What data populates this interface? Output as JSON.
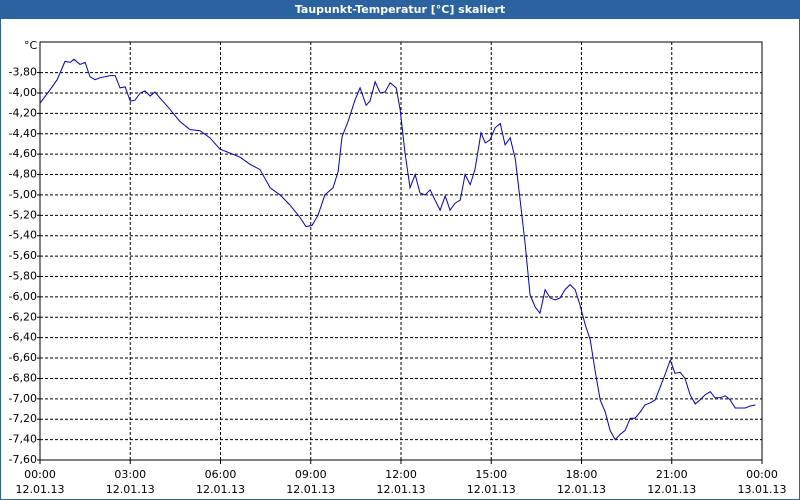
{
  "chart_data": {
    "type": "line",
    "title": "Taupunkt-Temperatur [°C] skaliert",
    "y_label": "°C",
    "color": "#0000cc",
    "grid": true,
    "xlim": [
      0,
      24
    ],
    "ylim": [
      -7.6,
      -3.5
    ],
    "xticks": [
      {
        "value": 0,
        "label": "00:00"
      },
      {
        "value": 3,
        "label": "03:00"
      },
      {
        "value": 6,
        "label": "06:00"
      },
      {
        "value": 9,
        "label": "09:00"
      },
      {
        "value": 12,
        "label": "12:00"
      },
      {
        "value": 15,
        "label": "15:00"
      },
      {
        "value": 18,
        "label": "18:00"
      },
      {
        "value": 21,
        "label": "21:00"
      },
      {
        "value": 24,
        "label": "00:00"
      }
    ],
    "xtick_dates": [
      "12.01.13",
      "12.01.13",
      "12.01.13",
      "12.01.13",
      "12.01.13",
      "12.01.13",
      "12.01.13",
      "12.01.13",
      "13.01.13"
    ],
    "yticks": [
      {
        "value": -3.8,
        "label": "-3,80"
      },
      {
        "value": -4.0,
        "label": "-4,00"
      },
      {
        "value": -4.2,
        "label": "-4,20"
      },
      {
        "value": -4.4,
        "label": "-4,40"
      },
      {
        "value": -4.6,
        "label": "-4,60"
      },
      {
        "value": -4.8,
        "label": "-4,80"
      },
      {
        "value": -5.0,
        "label": "-5,00"
      },
      {
        "value": -5.2,
        "label": "-5,20"
      },
      {
        "value": -5.4,
        "label": "-5,40"
      },
      {
        "value": -5.6,
        "label": "-5,60"
      },
      {
        "value": -5.8,
        "label": "-5,80"
      },
      {
        "value": -6.0,
        "label": "-6,00"
      },
      {
        "value": -6.2,
        "label": "-6,20"
      },
      {
        "value": -6.4,
        "label": "-6,40"
      },
      {
        "value": -6.6,
        "label": "-6,60"
      },
      {
        "value": -6.8,
        "label": "-6,80"
      },
      {
        "value": -7.0,
        "label": "-7,00"
      },
      {
        "value": -7.2,
        "label": "-7,20"
      },
      {
        "value": -7.4,
        "label": "-7,40"
      },
      {
        "value": -7.6,
        "label": "-7,60"
      }
    ],
    "x": [
      0,
      0.33,
      0.57,
      0.83,
      1.0,
      1.13,
      1.33,
      1.5,
      1.66,
      1.83,
      2.0,
      2.33,
      2.5,
      2.66,
      2.83,
      3.0,
      3.16,
      3.33,
      3.49,
      3.66,
      3.82,
      3.99,
      4.32,
      4.65,
      4.99,
      5.32,
      5.65,
      5.98,
      6.32,
      6.65,
      6.98,
      7.31,
      7.65,
      7.98,
      8.31,
      8.64,
      8.84,
      9.04,
      9.24,
      9.47,
      9.74,
      9.91,
      10.04,
      10.24,
      10.47,
      10.64,
      10.84,
      10.97,
      11.14,
      11.31,
      11.47,
      11.64,
      11.84,
      11.97,
      12.13,
      12.3,
      12.47,
      12.63,
      12.8,
      12.97,
      13.13,
      13.3,
      13.47,
      13.63,
      13.8,
      13.97,
      14.13,
      14.3,
      14.46,
      14.66,
      14.8,
      14.96,
      15.13,
      15.3,
      15.46,
      15.63,
      15.8,
      15.96,
      16.13,
      16.29,
      16.46,
      16.62,
      16.79,
      16.96,
      17.12,
      17.29,
      17.45,
      17.62,
      17.79,
      17.95,
      18.12,
      18.29,
      18.45,
      18.62,
      18.79,
      18.95,
      19.12,
      19.28,
      19.45,
      19.62,
      19.78,
      19.95,
      20.11,
      20.28,
      20.45,
      20.61,
      20.78,
      20.95,
      21.11,
      21.28,
      21.44,
      21.61,
      21.78,
      21.94,
      22.11,
      22.28,
      22.44,
      22.61,
      22.78,
      22.94,
      23.11,
      23.28,
      23.44,
      23.61,
      23.78
    ],
    "values": [
      -4.1,
      -3.97,
      -3.87,
      -3.69,
      -3.7,
      -3.67,
      -3.72,
      -3.7,
      -3.84,
      -3.87,
      -3.85,
      -3.83,
      -3.83,
      -3.95,
      -3.94,
      -4.08,
      -4.07,
      -4.0,
      -3.98,
      -4.03,
      -3.99,
      -4.05,
      -4.16,
      -4.28,
      -4.36,
      -4.37,
      -4.44,
      -4.55,
      -4.59,
      -4.63,
      -4.7,
      -4.75,
      -4.93,
      -5.0,
      -5.1,
      -5.22,
      -5.31,
      -5.3,
      -5.2,
      -5.0,
      -4.93,
      -4.77,
      -4.43,
      -4.28,
      -4.07,
      -3.95,
      -4.12,
      -4.08,
      -3.89,
      -4.0,
      -3.99,
      -3.9,
      -3.95,
      -4.16,
      -4.58,
      -4.93,
      -4.8,
      -4.98,
      -5.0,
      -4.95,
      -5.05,
      -5.15,
      -5.01,
      -5.15,
      -5.08,
      -5.05,
      -4.8,
      -4.9,
      -4.75,
      -4.39,
      -4.49,
      -4.46,
      -4.34,
      -4.3,
      -4.51,
      -4.44,
      -4.65,
      -5.05,
      -5.49,
      -5.98,
      -6.1,
      -6.16,
      -5.93,
      -6.01,
      -6.03,
      -6.01,
      -5.93,
      -5.88,
      -5.93,
      -6.08,
      -6.27,
      -6.42,
      -6.72,
      -7.01,
      -7.13,
      -7.31,
      -7.4,
      -7.35,
      -7.31,
      -7.19,
      -7.19,
      -7.13,
      -7.06,
      -7.04,
      -7.01,
      -6.89,
      -6.76,
      -6.62,
      -6.75,
      -6.74,
      -6.8,
      -6.96,
      -7.05,
      -7.01,
      -6.96,
      -6.93,
      -6.99,
      -6.99,
      -6.97,
      -7.01,
      -7.09,
      -7.09,
      -7.09,
      -7.07,
      -7.06
    ]
  }
}
